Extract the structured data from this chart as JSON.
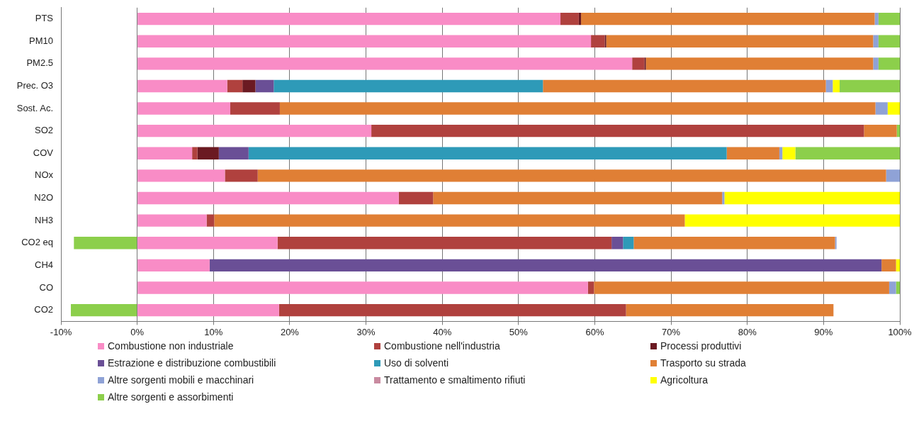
{
  "chart_data": {
    "type": "bar",
    "orientation": "horizontal",
    "stacked": true,
    "categories": [
      "PTS",
      "PM10",
      "PM2.5",
      "Prec. O3",
      "Sost. Ac.",
      "SO2",
      "COV",
      "NOx",
      "N2O",
      "NH3",
      "CO2 eq",
      "CH4",
      "CO",
      "CO2"
    ],
    "series": [
      {
        "name": "Combustione non industriale",
        "color": "#f98cc6",
        "values": [
          55.5,
          59.5,
          64.9,
          11.8,
          12.2,
          30.7,
          7.2,
          11.5,
          34.3,
          9.1,
          18.4,
          9.5,
          59.1,
          18.6
        ]
      },
      {
        "name": "Combustione nell'industria",
        "color": "#b0413e",
        "values": [
          2.4,
          1.8,
          1.6,
          2.0,
          6.5,
          64.6,
          0.7,
          4.3,
          4.5,
          1.0,
          43.8,
          0,
          0.8,
          45.5
        ]
      },
      {
        "name": "Processi produttivi",
        "color": "#6b1a22",
        "values": [
          0.3,
          0.2,
          0.2,
          1.7,
          0,
          0,
          2.8,
          0,
          0,
          0,
          0,
          0,
          0,
          0
        ]
      },
      {
        "name": "Estrazione e distribuzione combustibili",
        "color": "#6a4f96",
        "values": [
          0,
          0,
          0,
          2.4,
          0,
          0,
          3.9,
          0,
          0,
          0,
          1.5,
          88.1,
          0,
          0
        ]
      },
      {
        "name": "Uso di solventi",
        "color": "#2e9ab8",
        "values": [
          0,
          0,
          0,
          35.3,
          0,
          0,
          62.7,
          0,
          0,
          0,
          1.4,
          0,
          0,
          0
        ]
      },
      {
        "name": "Trasporto su strada",
        "color": "#e07f35",
        "values": [
          38.5,
          35.0,
          29.8,
          37.1,
          78.1,
          4.3,
          6.9,
          82.4,
          37.9,
          61.7,
          26.4,
          1.9,
          38.7,
          27.2
        ]
      },
      {
        "name": "Altre sorgenti mobili e macchinari",
        "color": "#8fa2d6",
        "values": [
          0.5,
          0.7,
          0.7,
          0.9,
          1.6,
          0,
          0.4,
          1.8,
          0.3,
          0,
          0.2,
          0,
          0.9,
          0
        ]
      },
      {
        "name": "Trattamento e smaltimento rifiuti",
        "color": "#c98aa0",
        "values": [
          0,
          0,
          0,
          0,
          0,
          0,
          0,
          0,
          0,
          0,
          0,
          0,
          0,
          0
        ]
      },
      {
        "name": "Agricoltura",
        "color": "#ffff00",
        "values": [
          0,
          0,
          0,
          0.9,
          1.6,
          0,
          1.7,
          0,
          23.0,
          28.2,
          0,
          0.5,
          0,
          0
        ]
      },
      {
        "name": "Altre sorgenti e assorbimenti",
        "color": "#8ccf4b",
        "values": [
          2.8,
          2.8,
          2.8,
          7.9,
          0,
          0.4,
          13.7,
          0,
          0,
          0,
          -8.3,
          0,
          0.5,
          -8.7
        ]
      }
    ],
    "xlim": [
      -10,
      100
    ],
    "xticks": [
      {
        "value": -10,
        "label": "-10%"
      },
      {
        "value": 0,
        "label": "0%"
      },
      {
        "value": 10,
        "label": "10%"
      },
      {
        "value": 20,
        "label": "20%"
      },
      {
        "value": 30,
        "label": "30%"
      },
      {
        "value": 40,
        "label": "40%"
      },
      {
        "value": 50,
        "label": "50%"
      },
      {
        "value": 60,
        "label": "60%"
      },
      {
        "value": 70,
        "label": "70%"
      },
      {
        "value": 80,
        "label": "80%"
      },
      {
        "value": 90,
        "label": "90%"
      },
      {
        "value": 100,
        "label": "100%"
      }
    ],
    "grid": "x",
    "legend": "bottom"
  }
}
